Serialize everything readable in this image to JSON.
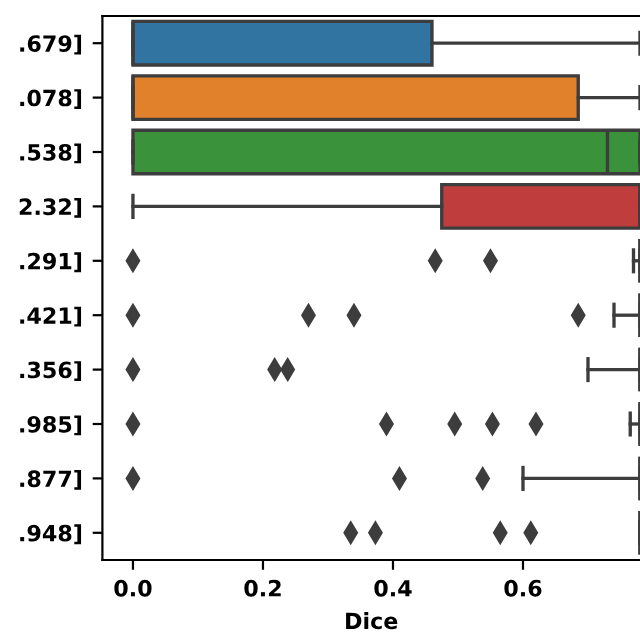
{
  "chart_data": {
    "type": "box",
    "orientation": "horizontal",
    "xlabel": "Dice",
    "categories": [
      ".679]",
      ".078]",
      ".538]",
      "2.32]",
      ".291]",
      ".421]",
      ".356]",
      ".985]",
      ".877]",
      ".948]"
    ],
    "colors": [
      "#3274a1",
      "#e1812c",
      "#3a923a",
      "#c03d3e",
      null,
      null,
      null,
      null,
      null,
      null
    ],
    "boxes": [
      {
        "low": 0,
        "q1": 0,
        "median": 0,
        "q3": 0.46,
        "high": 0.78
      },
      {
        "low": 0,
        "q1": 0,
        "median": 0,
        "q3": 0.685,
        "high": 0.78
      },
      {
        "low": 0,
        "q1": 0,
        "median": 0.73,
        "q3": 0.78,
        "high": 0.78
      },
      {
        "low": 0,
        "q1": 0.475,
        "median": 0.78,
        "q3": 0.78,
        "high": 0.78
      },
      {
        "low": 0.77,
        "q1": 0.78,
        "median": 0.78,
        "q3": 0.78,
        "high": 0.78,
        "outliers": [
          0,
          0.465,
          0.55
        ]
      },
      {
        "low": 0.74,
        "q1": 0.78,
        "median": 0.78,
        "q3": 0.78,
        "high": 0.78,
        "outliers": [
          0,
          0.27,
          0.34,
          0.685
        ]
      },
      {
        "low": 0.7,
        "q1": 0.78,
        "median": 0.78,
        "q3": 0.78,
        "high": 0.78,
        "outliers": [
          0,
          0.218,
          0.238
        ]
      },
      {
        "low": 0.765,
        "q1": 0.78,
        "median": 0.78,
        "q3": 0.78,
        "high": 0.78,
        "outliers": [
          0,
          0.39,
          0.495,
          0.553,
          0.62
        ]
      },
      {
        "low": 0.6,
        "q1": 0.78,
        "median": 0.78,
        "q3": 0.78,
        "high": 0.78,
        "outliers": [
          0,
          0.41,
          0.538
        ]
      },
      {
        "low": 0.78,
        "q1": 0.78,
        "median": 0.78,
        "q3": 0.78,
        "high": 0.78,
        "outliers": [
          0.335,
          0.373,
          0.565,
          0.612
        ]
      }
    ],
    "xlim": [
      -0.047,
      0.78
    ],
    "xticks": [
      {
        "value": 0,
        "label": "0.0"
      },
      {
        "value": 0.2,
        "label": "0.2"
      },
      {
        "value": 0.4,
        "label": "0.4"
      },
      {
        "value": 0.6,
        "label": "0.6"
      }
    ],
    "grid": false,
    "legend": false
  }
}
